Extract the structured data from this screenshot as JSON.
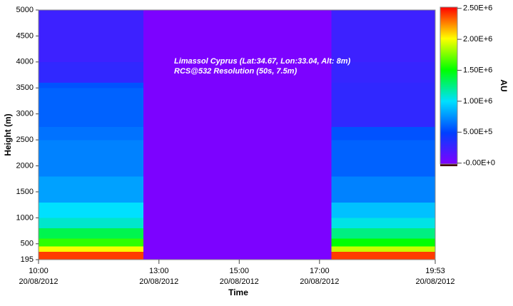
{
  "chart_data": {
    "type": "heatmap",
    "annotation": [
      "Limassol Cyprus (Lat:34.67, Lon:33.04, Alt: 8m)",
      "RCS@532 Resolution (50s, 7.5m)"
    ],
    "x_label": "Time",
    "y_label": "Height (m)",
    "colorbar_label": "AU",
    "xlim": [
      10,
      19.883
    ],
    "xticks": [
      {
        "value": 10,
        "label": "10:00",
        "date": "20/08/2012"
      },
      {
        "value": 13,
        "label": "13:00",
        "date": "20/08/2012"
      },
      {
        "value": 15,
        "label": "15:00",
        "date": "20/08/2012"
      },
      {
        "value": 17,
        "label": "17:00",
        "date": "20/08/2012"
      },
      {
        "value": 19.883,
        "label": "19:53",
        "date": "20/08/2012"
      }
    ],
    "ylim": [
      195,
      5000
    ],
    "yticks": [
      195,
      500,
      1000,
      1500,
      2000,
      2500,
      3000,
      3500,
      4000,
      4500,
      5000
    ],
    "x_bins": [
      10,
      10.667,
      11.333,
      12,
      12.617,
      17.3,
      18,
      18.667,
      19.333,
      19.883
    ],
    "y_bins": [
      195,
      350,
      450,
      600,
      800,
      1000,
      1300,
      1800,
      2500,
      2750,
      3500,
      3600,
      4000,
      5000
    ],
    "values": [
      [
        2400000,
        2400000,
        2400000,
        2400000,
        0,
        2400000,
        2400000,
        2400000,
        2400000
      ],
      [
        2000000,
        2000000,
        2000000,
        2000000,
        0,
        1900000,
        1900000,
        1900000,
        1900000
      ],
      [
        1600000,
        1600000,
        1600000,
        1600000,
        0,
        1500000,
        1500000,
        1500000,
        1500000
      ],
      [
        1350000,
        1350000,
        1350000,
        1350000,
        0,
        1250000,
        1250000,
        1250000,
        1250000
      ],
      [
        1100000,
        1100000,
        1100000,
        1100000,
        0,
        1050000,
        1050000,
        1050000,
        1050000
      ],
      [
        1000000,
        1000000,
        1000000,
        1000000,
        0,
        900000,
        900000,
        900000,
        900000
      ],
      [
        800000,
        800000,
        800000,
        800000,
        0,
        700000,
        700000,
        700000,
        700000
      ],
      [
        700000,
        700000,
        700000,
        700000,
        0,
        600000,
        600000,
        600000,
        600000
      ],
      [
        650000,
        650000,
        650000,
        650000,
        0,
        550000,
        550000,
        550000,
        550000
      ],
      [
        600000,
        600000,
        600000,
        600000,
        0,
        300000,
        300000,
        300000,
        300000
      ],
      [
        550000,
        550000,
        550000,
        550000,
        0,
        300000,
        300000,
        300000,
        300000
      ],
      [
        300000,
        300000,
        300000,
        300000,
        0,
        280000,
        280000,
        280000,
        280000
      ],
      [
        250000,
        250000,
        250000,
        250000,
        0,
        250000,
        250000,
        250000,
        250000
      ]
    ],
    "clim": [
      -15000,
      2520000
    ],
    "colorscale": [
      "#8000ff",
      "#0040ff",
      "#00e0ff",
      "#00ff00",
      "#ffff00",
      "#ff0000"
    ],
    "cticks": [
      {
        "value": 0,
        "label": "-0.00E+0"
      },
      {
        "value": 500000,
        "label": "5.00E+5"
      },
      {
        "value": 1000000,
        "label": "1.00E+6"
      },
      {
        "value": 1500000,
        "label": "1.50E+6"
      },
      {
        "value": 2000000,
        "label": "2.00E+6"
      },
      {
        "value": 2500000,
        "label": "2.50E+6"
      }
    ]
  }
}
